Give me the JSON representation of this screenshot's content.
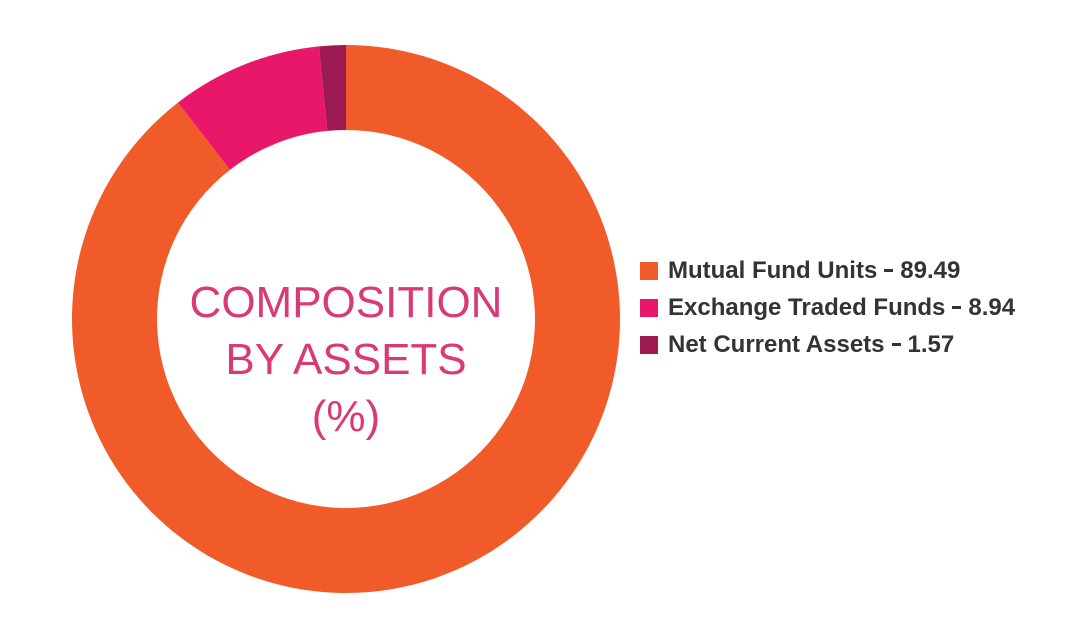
{
  "chart_data": {
    "type": "pie",
    "donut": true,
    "title": "COMPOSITION\nBY ASSETS\n(%)",
    "categories": [
      "Mutual Fund Units",
      "Exchange Traded Funds",
      "Net Current Assets"
    ],
    "values": [
      89.49,
      8.94,
      1.57
    ],
    "colors": [
      "#f15a29",
      "#e8176a",
      "#9c1a52"
    ]
  }
}
